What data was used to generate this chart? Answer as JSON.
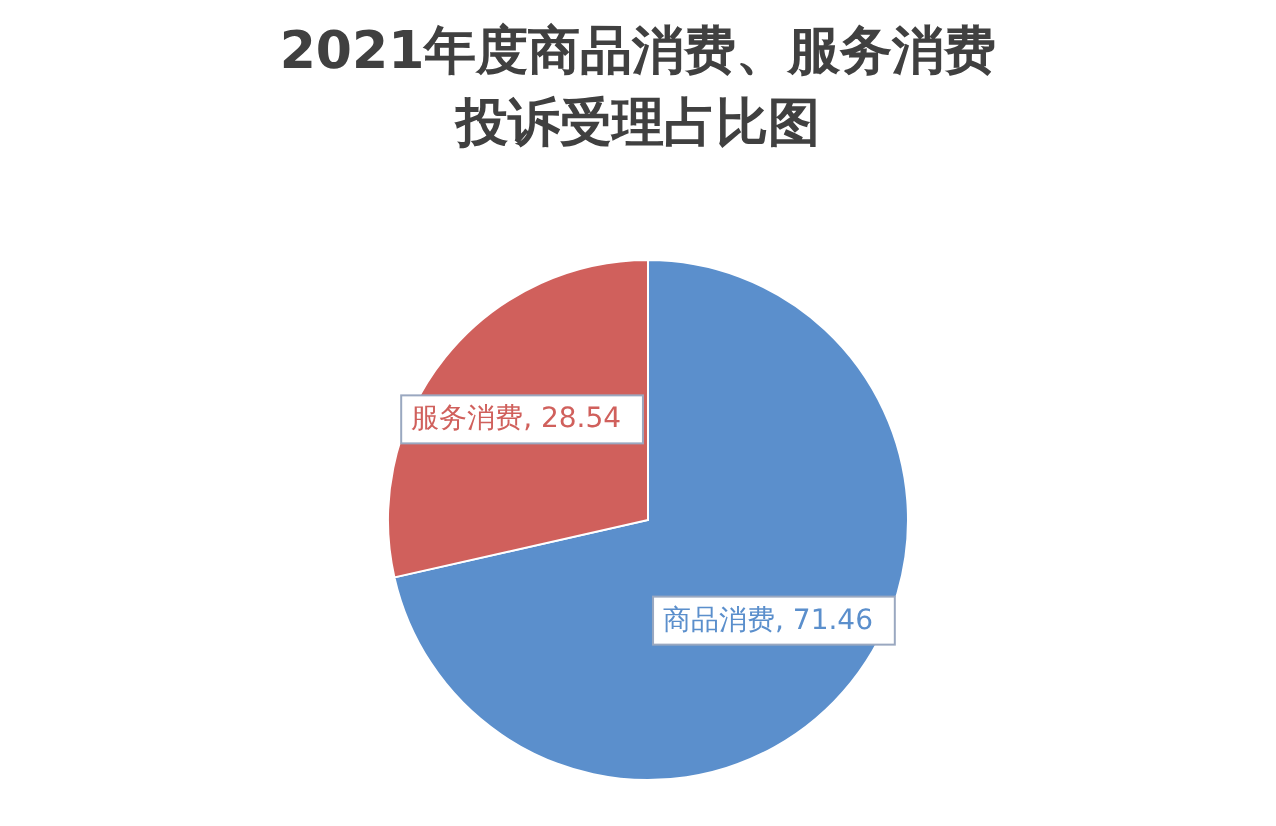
{
  "chart_data": {
    "type": "pie",
    "title": "2021年度商品消费、服务消费投诉受理占比图",
    "categories": [
      "商品消费",
      "服务消费"
    ],
    "values": [
      71.46,
      28.54
    ],
    "value_labels": [
      ", 71.46",
      ", 28.54"
    ],
    "colors": [
      "#5b8fcc",
      "#d0605c"
    ]
  }
}
